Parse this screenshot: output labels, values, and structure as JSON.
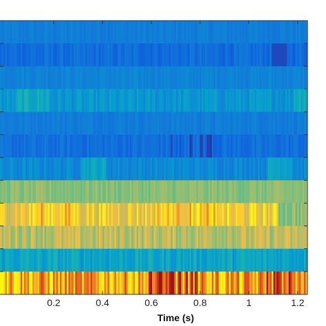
{
  "chart_data": {
    "type": "heatmap",
    "title": "",
    "xlabel": "Time (s)",
    "ylabel": "",
    "xlim": [
      -0.02,
      1.24
    ],
    "x_ticks": [
      "0.2",
      "0.4",
      "0.6",
      "0.8",
      "1",
      "1.2"
    ],
    "x_tick_values": [
      0.2,
      0.4,
      0.6,
      0.8,
      1.0,
      1.2
    ],
    "rows": 12,
    "colormap": "parula",
    "color_range": [
      0,
      1
    ],
    "row_levels": [
      0.22,
      0.16,
      0.24,
      0.3,
      0.22,
      0.17,
      0.26,
      0.58,
      0.76,
      0.66,
      0.36,
      0.9
    ],
    "row_spread": [
      0.03,
      0.05,
      0.03,
      0.06,
      0.03,
      0.05,
      0.05,
      0.05,
      0.1,
      0.1,
      0.08,
      0.06
    ],
    "row_features": [
      "uniform blue",
      "darker blue, dark patch near 1.1 s",
      "uniform blue",
      "lighter cyan streaks around 0.1 s and near 1.2 s",
      "uniform blue",
      "dark blue streaks near 0.7-0.8 s",
      "blue with cyan patches around 0.35 s and 1.1 s",
      "green band",
      "yellow-green, brightest around 0.2 and 0.6-0.9 s",
      "green with yellow streaks",
      "cyan with blue streaks",
      "orange-red with dark red streaks around 0.6-0.8 s and 1.1 s"
    ],
    "grid": false,
    "legend": "none"
  }
}
